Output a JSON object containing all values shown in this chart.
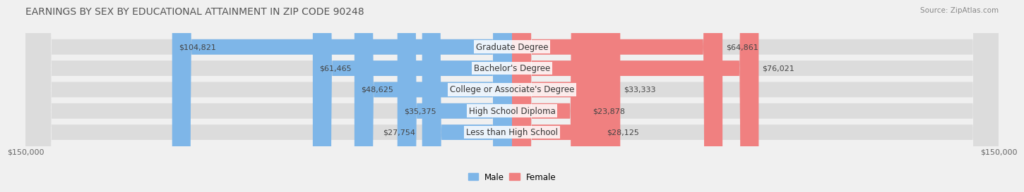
{
  "title": "EARNINGS BY SEX BY EDUCATIONAL ATTAINMENT IN ZIP CODE 90248",
  "source": "Source: ZipAtlas.com",
  "categories": [
    "Less than High School",
    "High School Diploma",
    "College or Associate's Degree",
    "Bachelor's Degree",
    "Graduate Degree"
  ],
  "male_values": [
    27754,
    35375,
    48625,
    61465,
    104821
  ],
  "female_values": [
    28125,
    23878,
    33333,
    76021,
    64861
  ],
  "male_color": "#7EB6E8",
  "female_color": "#F08080",
  "male_label": "Male",
  "female_label": "Female",
  "xlim": 150000,
  "background_color": "#f0f0f0",
  "bar_background": "#e8e8e8",
  "title_fontsize": 10,
  "label_fontsize": 8.5,
  "value_fontsize": 8,
  "axis_label_left": "$150,000",
  "axis_label_right": "$150,000"
}
